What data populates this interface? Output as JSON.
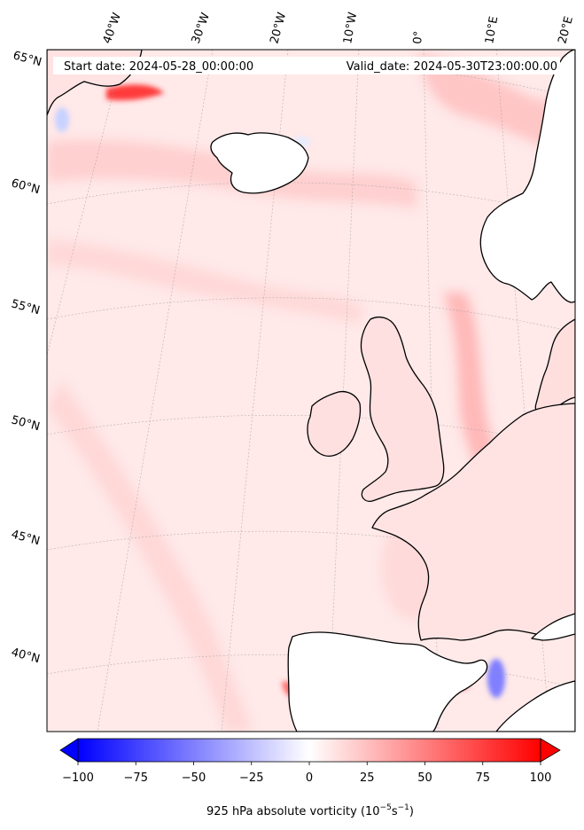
{
  "header": {
    "start_date": "Start date: 2024-05-28_00:00:00",
    "valid_date": "Valid_date: 2024-05-30T23:00:00.00"
  },
  "longitude_labels": [
    "40°W",
    "30°W",
    "20°W",
    "10°W",
    "0°",
    "10°E",
    "20°E"
  ],
  "latitude_labels": [
    "65°N",
    "60°N",
    "55°N",
    "50°N",
    "45°N",
    "40°N"
  ],
  "colorbar": {
    "ticks": [
      "−100",
      "−75",
      "−50",
      "−25",
      "0",
      "25",
      "50",
      "75",
      "100"
    ],
    "range": [
      -100,
      100
    ],
    "colormap": "bwr",
    "extend": "both",
    "label_main": "925 hPa absolute vorticity (10",
    "label_exp1": "−5",
    "label_mid": "s",
    "label_exp2": "−1",
    "label_close": ")"
  },
  "colors": {
    "coastline": "#000000",
    "background_field": "#ffe6e6",
    "negative": "#0000ff",
    "positive": "#ff0000",
    "neutral": "#ffffff",
    "gridline": "#9a9a9a"
  }
}
